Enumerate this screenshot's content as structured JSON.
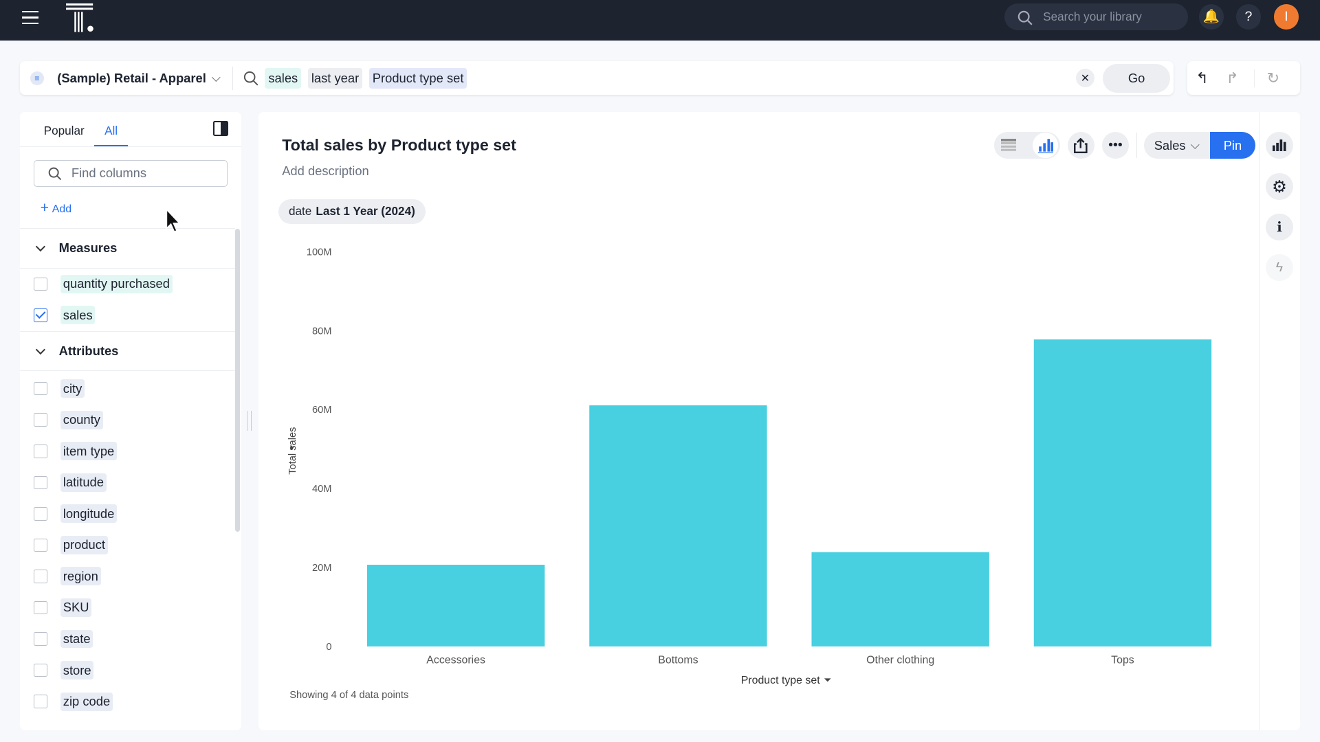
{
  "topbar": {
    "search_placeholder": "Search your library",
    "avatar_initial": "I"
  },
  "searchbar": {
    "source": "(Sample) Retail - Apparel",
    "tokens": [
      "sales",
      "last year",
      "Product type set"
    ],
    "go_label": "Go"
  },
  "left_panel": {
    "tabs": [
      "Popular",
      "All"
    ],
    "active_tab": "All",
    "find_placeholder": "Find columns",
    "add_label": "Add",
    "measures_title": "Measures",
    "measures": [
      {
        "label": "quantity purchased",
        "checked": false
      },
      {
        "label": "sales",
        "checked": true
      }
    ],
    "attributes_title": "Attributes",
    "attributes": [
      "city",
      "county",
      "item type",
      "latitude",
      "longitude",
      "product",
      "region",
      "SKU",
      "state",
      "store",
      "zip code"
    ]
  },
  "card": {
    "title": "Total sales by Product type set",
    "description": "Add description",
    "filter_key": "date",
    "filter_value": "Last 1 Year (2024)",
    "measure_select": "Sales",
    "pin_label": "Pin",
    "footer": "Showing 4 of 4 data points"
  },
  "chart_data": {
    "type": "bar",
    "title": "Total sales by Product type set",
    "xlabel": "Product type set",
    "ylabel": "Total sales",
    "categories": [
      "Accessories",
      "Bottoms",
      "Other clothing",
      "Tops"
    ],
    "values": [
      20700000,
      61100000,
      23900000,
      77800000
    ],
    "ylim": [
      0,
      100000000
    ],
    "yticks": [
      "0",
      "20M",
      "40M",
      "60M",
      "80M",
      "100M"
    ],
    "color": "#48cfe0",
    "grid": false
  }
}
